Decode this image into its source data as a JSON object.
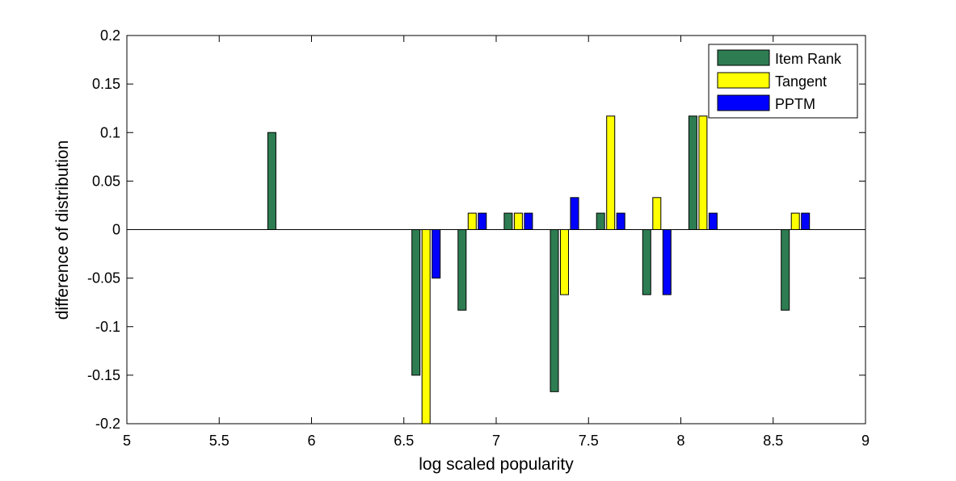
{
  "chart_data": {
    "type": "bar",
    "title": "",
    "xlabel": "log scaled popularity",
    "ylabel": "difference of distribution",
    "xlim": [
      5,
      9
    ],
    "ylim": [
      -0.2,
      0.2
    ],
    "xticks": [
      "5",
      "5.5",
      "6",
      "6.5",
      "7",
      "7.5",
      "8",
      "8.5",
      "9"
    ],
    "yticks": [
      "-0.2",
      "-0.15",
      "-0.1",
      "-0.05",
      "0",
      "0.05",
      "0.1",
      "0.15",
      "0.2"
    ],
    "grid": false,
    "legend_position": "top-right",
    "bin_centers": [
      5.84,
      6.34,
      6.62,
      6.87,
      7.12,
      7.37,
      7.62,
      7.87,
      8.12,
      8.37,
      8.62
    ],
    "series": [
      {
        "name": "Item Rank",
        "color": "#2e7d52",
        "values": [
          0.1,
          0,
          -0.15,
          -0.083,
          0.017,
          -0.167,
          0.017,
          -0.067,
          0.117,
          0,
          -0.083
        ]
      },
      {
        "name": "Tangent",
        "color": "#ffff00",
        "values": [
          0,
          0,
          -0.2,
          0.017,
          0.017,
          -0.067,
          0.117,
          0.033,
          0.117,
          0,
          0.017
        ]
      },
      {
        "name": "PPTM",
        "color": "#0000ff",
        "values": [
          0,
          0,
          -0.05,
          0.017,
          0.017,
          0.033,
          0.017,
          -0.067,
          0.017,
          0,
          0.017
        ]
      }
    ]
  }
}
